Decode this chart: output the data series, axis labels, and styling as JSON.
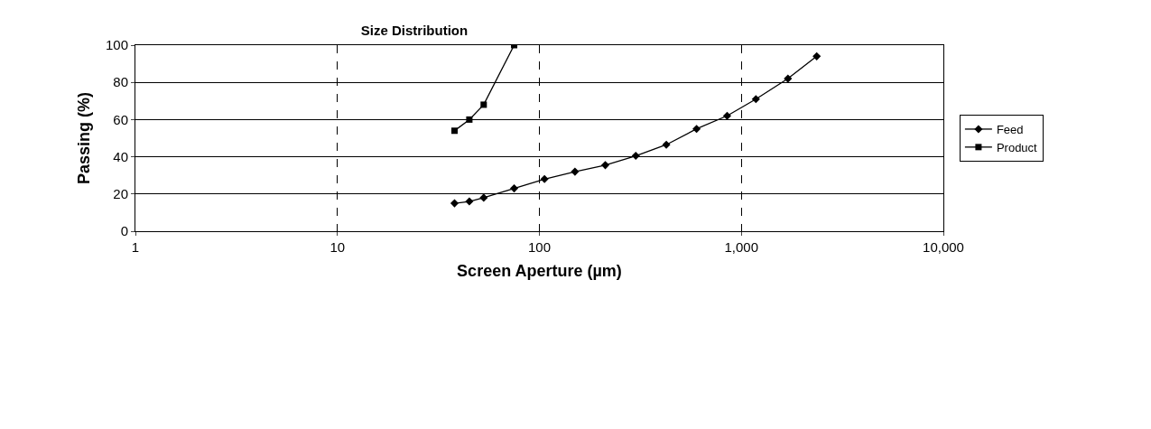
{
  "chart_data": {
    "type": "line",
    "title": "Size Distribution",
    "xlabel": "Screen Aperture (µm)",
    "ylabel": "Passing (%)",
    "log": "x",
    "xlim": [
      1,
      10000
    ],
    "xticks": [
      {
        "value": 1,
        "label": "1"
      },
      {
        "value": 10,
        "label": "10"
      },
      {
        "value": 100,
        "label": "100"
      },
      {
        "value": 1000,
        "label": "1,000"
      },
      {
        "value": 10000,
        "label": "10,000"
      }
    ],
    "ylim": [
      0,
      100
    ],
    "yticks": [
      0,
      20,
      40,
      60,
      80,
      100
    ],
    "grid": true,
    "legend": "right",
    "series": [
      {
        "name": "Feed",
        "color": "#000000",
        "marker": "diamond",
        "x": [
          38,
          45,
          53,
          75,
          106,
          150,
          212,
          300,
          425,
          600,
          850,
          1180,
          1700,
          2360
        ],
        "values": [
          15,
          16,
          18,
          23,
          28,
          32,
          35.5,
          40.5,
          46.5,
          55,
          62,
          71,
          82,
          94
        ]
      },
      {
        "name": "Product",
        "color": "#000000",
        "marker": "square",
        "x": [
          38,
          45,
          53,
          75
        ],
        "values": [
          54,
          60,
          68,
          100
        ]
      }
    ]
  }
}
